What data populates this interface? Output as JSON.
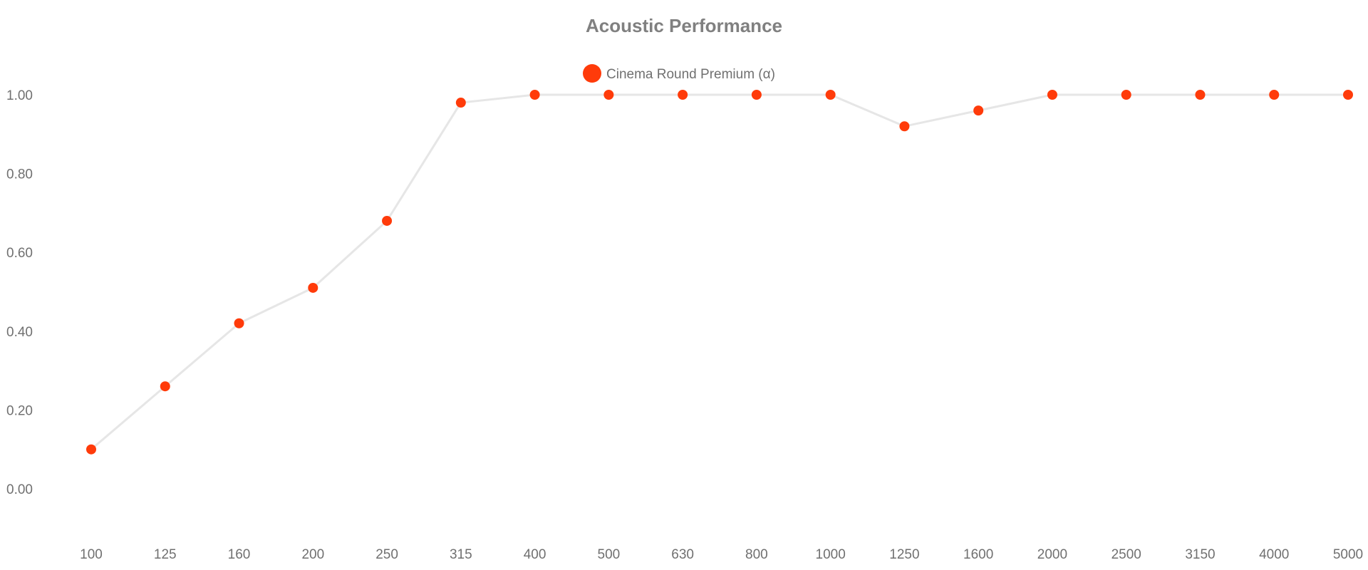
{
  "chart_data": {
    "type": "line",
    "title": "Acoustic Performance",
    "xlabel": "",
    "ylabel": "",
    "categories": [
      "100",
      "125",
      "160",
      "200",
      "250",
      "315",
      "400",
      "500",
      "630",
      "800",
      "1000",
      "1250",
      "1600",
      "2000",
      "2500",
      "3150",
      "4000",
      "5000"
    ],
    "series": [
      {
        "name": "Cinema Round Premium (α)",
        "values": [
          0.1,
          0.26,
          0.42,
          0.51,
          0.68,
          0.98,
          1.0,
          1.0,
          1.0,
          1.0,
          1.0,
          0.92,
          0.96,
          1.0,
          1.0,
          1.0,
          1.0,
          1.0
        ],
        "color": "#ff3b0a",
        "line_color": "#e6e6e6"
      }
    ],
    "yticks": [
      "0.00",
      "0.20",
      "0.40",
      "0.60",
      "0.80",
      "1.00"
    ],
    "yticks_values": [
      0,
      0.2,
      0.4,
      0.6,
      0.8,
      1.0
    ],
    "ylim": [
      -0.1,
      1.1
    ],
    "grid": false,
    "legend": "top-center"
  }
}
